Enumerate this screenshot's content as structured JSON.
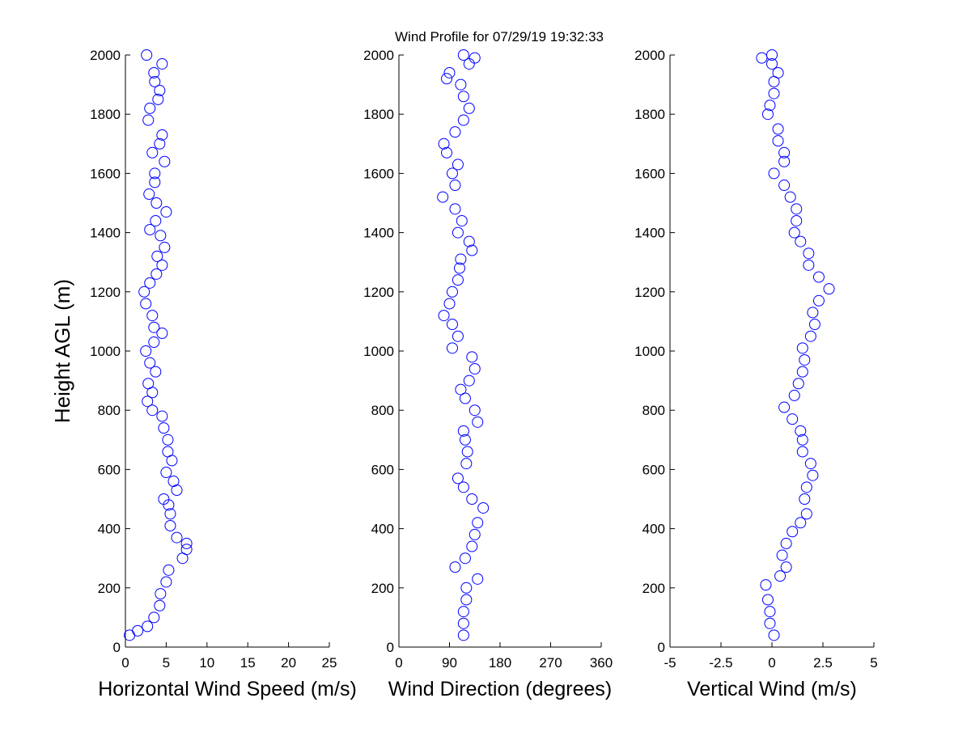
{
  "title": "Wind Profile for  07/29/19 19:32:33",
  "colors": {
    "marker": "#0000ff",
    "axis": "#000000"
  },
  "chart_data": [
    {
      "type": "scatter",
      "xlabel": "Horizontal Wind Speed (m/s)",
      "ylabel": "Height AGL (m)",
      "xlim": [
        0,
        25
      ],
      "ylim": [
        0,
        2000
      ],
      "xticks": [
        "0",
        "5",
        "10",
        "15",
        "20",
        "25"
      ],
      "xtick_values": [
        0,
        5,
        10,
        15,
        20,
        25
      ],
      "yticks": [
        "0",
        "200",
        "400",
        "600",
        "800",
        "1000",
        "1200",
        "1400",
        "1600",
        "1800",
        "2000"
      ],
      "ytick_values": [
        0,
        200,
        400,
        600,
        800,
        1000,
        1200,
        1400,
        1600,
        1800,
        2000
      ],
      "points": [
        [
          0.5,
          40
        ],
        [
          1.5,
          55
        ],
        [
          2.7,
          70
        ],
        [
          3.5,
          100
        ],
        [
          4.2,
          140
        ],
        [
          4.3,
          180
        ],
        [
          5,
          220
        ],
        [
          5.3,
          260
        ],
        [
          7,
          300
        ],
        [
          7.5,
          330
        ],
        [
          7.5,
          350
        ],
        [
          6.3,
          370
        ],
        [
          5.5,
          410
        ],
        [
          5.5,
          450
        ],
        [
          5.3,
          480
        ],
        [
          4.7,
          500
        ],
        [
          6.3,
          530
        ],
        [
          5.9,
          560
        ],
        [
          5,
          590
        ],
        [
          5.7,
          630
        ],
        [
          5.2,
          660
        ],
        [
          5.2,
          700
        ],
        [
          4.7,
          740
        ],
        [
          4.5,
          780
        ],
        [
          3.3,
          800
        ],
        [
          2.7,
          830
        ],
        [
          3.3,
          860
        ],
        [
          2.8,
          890
        ],
        [
          3.7,
          930
        ],
        [
          3,
          960
        ],
        [
          2.5,
          1000
        ],
        [
          3.5,
          1030
        ],
        [
          4.5,
          1060
        ],
        [
          3.5,
          1080
        ],
        [
          3.3,
          1120
        ],
        [
          2.5,
          1160
        ],
        [
          2.3,
          1200
        ],
        [
          3,
          1230
        ],
        [
          3.8,
          1260
        ],
        [
          4.5,
          1290
        ],
        [
          3.9,
          1320
        ],
        [
          4.8,
          1350
        ],
        [
          4.3,
          1390
        ],
        [
          3,
          1410
        ],
        [
          3.7,
          1440
        ],
        [
          5,
          1470
        ],
        [
          3.8,
          1500
        ],
        [
          2.9,
          1530
        ],
        [
          3.6,
          1570
        ],
        [
          3.6,
          1600
        ],
        [
          4.8,
          1640
        ],
        [
          3.3,
          1670
        ],
        [
          4.2,
          1700
        ],
        [
          4.5,
          1730
        ],
        [
          2.8,
          1780
        ],
        [
          3,
          1820
        ],
        [
          4,
          1850
        ],
        [
          4.2,
          1880
        ],
        [
          3.6,
          1910
        ],
        [
          3.5,
          1940
        ],
        [
          4.5,
          1970
        ],
        [
          2.6,
          2000
        ]
      ]
    },
    {
      "type": "scatter",
      "xlabel": "Wind Direction (degrees)",
      "ylabel": "",
      "xlim": [
        0,
        360
      ],
      "ylim": [
        0,
        2000
      ],
      "xticks": [
        "0",
        "90",
        "180",
        "270",
        "360"
      ],
      "xtick_values": [
        0,
        90,
        180,
        270,
        360
      ],
      "yticks": [
        "0",
        "200",
        "400",
        "600",
        "800",
        "1000",
        "1200",
        "1400",
        "1600",
        "1800",
        "2000"
      ],
      "ytick_values": [
        0,
        200,
        400,
        600,
        800,
        1000,
        1200,
        1400,
        1600,
        1800,
        2000
      ],
      "points": [
        [
          115,
          40
        ],
        [
          115,
          80
        ],
        [
          115,
          120
        ],
        [
          120,
          160
        ],
        [
          120,
          200
        ],
        [
          140,
          230
        ],
        [
          100,
          270
        ],
        [
          118,
          300
        ],
        [
          130,
          340
        ],
        [
          135,
          380
        ],
        [
          140,
          420
        ],
        [
          150,
          470
        ],
        [
          130,
          500
        ],
        [
          115,
          540
        ],
        [
          105,
          570
        ],
        [
          120,
          620
        ],
        [
          122,
          660
        ],
        [
          118,
          700
        ],
        [
          115,
          730
        ],
        [
          140,
          760
        ],
        [
          135,
          800
        ],
        [
          118,
          840
        ],
        [
          110,
          870
        ],
        [
          125,
          900
        ],
        [
          135,
          940
        ],
        [
          130,
          980
        ],
        [
          95,
          1010
        ],
        [
          105,
          1050
        ],
        [
          95,
          1090
        ],
        [
          80,
          1120
        ],
        [
          90,
          1160
        ],
        [
          95,
          1200
        ],
        [
          105,
          1240
        ],
        [
          108,
          1280
        ],
        [
          110,
          1310
        ],
        [
          130,
          1340
        ],
        [
          125,
          1370
        ],
        [
          105,
          1400
        ],
        [
          112,
          1440
        ],
        [
          100,
          1480
        ],
        [
          78,
          1520
        ],
        [
          100,
          1560
        ],
        [
          95,
          1600
        ],
        [
          105,
          1630
        ],
        [
          85,
          1670
        ],
        [
          80,
          1700
        ],
        [
          100,
          1740
        ],
        [
          115,
          1780
        ],
        [
          125,
          1820
        ],
        [
          115,
          1860
        ],
        [
          110,
          1900
        ],
        [
          85,
          1920
        ],
        [
          90,
          1940
        ],
        [
          125,
          1970
        ],
        [
          135,
          1990
        ],
        [
          115,
          2000
        ]
      ]
    },
    {
      "type": "scatter",
      "xlabel": "Vertical Wind (m/s)",
      "ylabel": "",
      "xlim": [
        -5,
        5
      ],
      "ylim": [
        0,
        2000
      ],
      "xticks": [
        "-5",
        "-2.5",
        "0",
        "2.5",
        "5"
      ],
      "xtick_values": [
        -5,
        -2.5,
        0,
        2.5,
        5
      ],
      "yticks": [
        "0",
        "200",
        "400",
        "600",
        "800",
        "1000",
        "1200",
        "1400",
        "1600",
        "1800",
        "2000"
      ],
      "ytick_values": [
        0,
        200,
        400,
        600,
        800,
        1000,
        1200,
        1400,
        1600,
        1800,
        2000
      ],
      "points": [
        [
          0.1,
          40
        ],
        [
          -0.1,
          80
        ],
        [
          -0.1,
          120
        ],
        [
          -0.2,
          160
        ],
        [
          -0.3,
          210
        ],
        [
          0.4,
          240
        ],
        [
          0.7,
          270
        ],
        [
          0.5,
          310
        ],
        [
          0.7,
          350
        ],
        [
          1.0,
          390
        ],
        [
          1.4,
          420
        ],
        [
          1.7,
          450
        ],
        [
          1.6,
          500
        ],
        [
          1.7,
          540
        ],
        [
          2.0,
          580
        ],
        [
          1.9,
          620
        ],
        [
          1.5,
          660
        ],
        [
          1.5,
          700
        ],
        [
          1.4,
          730
        ],
        [
          1.0,
          770
        ],
        [
          0.6,
          810
        ],
        [
          1.1,
          850
        ],
        [
          1.3,
          890
        ],
        [
          1.5,
          930
        ],
        [
          1.6,
          970
        ],
        [
          1.5,
          1010
        ],
        [
          1.9,
          1050
        ],
        [
          2.1,
          1090
        ],
        [
          2.0,
          1130
        ],
        [
          2.3,
          1170
        ],
        [
          2.8,
          1210
        ],
        [
          2.3,
          1250
        ],
        [
          1.8,
          1290
        ],
        [
          1.8,
          1330
        ],
        [
          1.4,
          1370
        ],
        [
          1.1,
          1400
        ],
        [
          1.2,
          1440
        ],
        [
          1.2,
          1480
        ],
        [
          0.9,
          1520
        ],
        [
          0.6,
          1560
        ],
        [
          0.1,
          1600
        ],
        [
          0.6,
          1640
        ],
        [
          0.6,
          1670
        ],
        [
          0.3,
          1710
        ],
        [
          0.3,
          1750
        ],
        [
          -0.2,
          1800
        ],
        [
          -0.1,
          1830
        ],
        [
          0.1,
          1870
        ],
        [
          0.1,
          1910
        ],
        [
          0.3,
          1940
        ],
        [
          0,
          1970
        ],
        [
          -0.5,
          1990
        ],
        [
          0,
          2000
        ]
      ]
    }
  ]
}
